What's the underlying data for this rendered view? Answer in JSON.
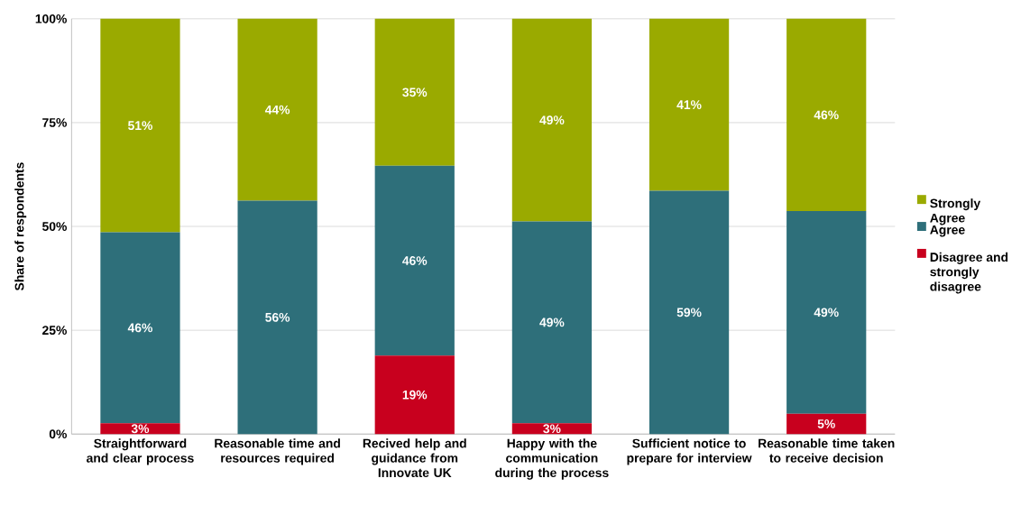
{
  "chart_data": {
    "type": "bar",
    "stacked": true,
    "ylabel": "Share of respondents",
    "categories": [
      "Straightforward and clear process",
      "Reasonable time and resources required",
      "Recived help and guidance from Innovate UK",
      "Happy with the communication during the process",
      "Sufficient notice to prepare for interview",
      "Reasonable time taken to receive decision"
    ],
    "series": [
      {
        "name": "Disagree and strongly disagree",
        "color": "#c8001e",
        "values": [
          2.6,
          0,
          18.9,
          2.6,
          0,
          4.9
        ],
        "value_labels": [
          "3%",
          null,
          "19%",
          "3%",
          null,
          "5%"
        ]
      },
      {
        "name": "Agree",
        "color": "#2e6f7a",
        "values": [
          46.0,
          56.2,
          45.7,
          48.6,
          58.6,
          48.8
        ],
        "value_labels": [
          "46%",
          "56%",
          "46%",
          "49%",
          "59%",
          "49%"
        ]
      },
      {
        "name": "Strongly Agree",
        "color": "#9aaa00",
        "values": [
          51.4,
          43.8,
          35.4,
          48.8,
          41.4,
          46.3
        ],
        "value_labels": [
          "51%",
          "44%",
          "35%",
          "49%",
          "41%",
          "46%"
        ]
      }
    ],
    "ylim": [
      0,
      100
    ],
    "yticks": [
      {
        "value": 0,
        "label": "0%"
      },
      {
        "value": 25,
        "label": "25%"
      },
      {
        "value": 50,
        "label": "50%"
      },
      {
        "value": 75,
        "label": "75%"
      },
      {
        "value": 100,
        "label": "100%"
      }
    ],
    "grid": "y",
    "legend": "right"
  }
}
